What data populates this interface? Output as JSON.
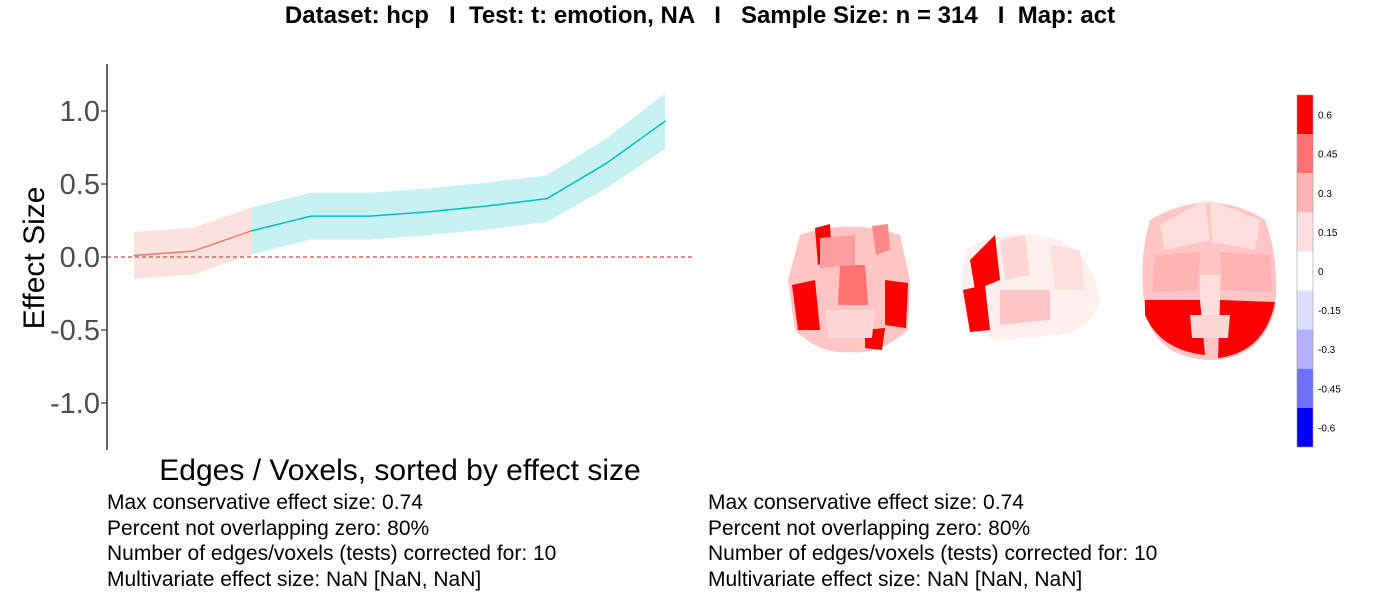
{
  "title": "Dataset: hcp   I  Test: t: emotion, NA   I   Sample Size: n = 314   I  Map: act",
  "chart_data": {
    "type": "line",
    "xlabel": "Edges / Voxels, sorted by effect size",
    "ylabel": "Effect Size",
    "ylim": [
      -1.3,
      1.3
    ],
    "yticks": [
      1.0,
      0.5,
      0.0,
      -0.5,
      -1.0
    ],
    "ytick_labels": [
      "1.0",
      "0.5",
      "0.0",
      "-0.5",
      "-1.0"
    ],
    "xlim": [
      0.5,
      10.5
    ],
    "reference_line": 0,
    "colors": {
      "overlapping_zero": "#f8766d",
      "not_overlapping_zero": "#00bfc4",
      "reference": "#c0504d"
    },
    "series": [
      {
        "x": [
          1,
          2,
          3
        ],
        "values": [
          0.01,
          0.04,
          0.18
        ],
        "lower": [
          -0.15,
          -0.12,
          0.02
        ],
        "upper": [
          0.17,
          0.2,
          0.34
        ]
      },
      {
        "x": [
          3,
          4,
          5,
          6,
          7,
          8,
          9,
          10
        ],
        "values": [
          0.18,
          0.28,
          0.28,
          0.31,
          0.35,
          0.4,
          0.64,
          0.93
        ],
        "lower": [
          0.02,
          0.12,
          0.12,
          0.15,
          0.19,
          0.24,
          0.47,
          0.74
        ],
        "upper": [
          0.34,
          0.44,
          0.44,
          0.47,
          0.51,
          0.56,
          0.81,
          1.12
        ]
      }
    ]
  },
  "stats_left": [
    "Max conservative effect size: 0.74",
    "Percent not overlapping zero: 80%",
    "Number of edges/voxels (tests) corrected for: 10",
    "Multivariate effect size: NaN [NaN, NaN]"
  ],
  "stats_right": [
    "Max conservative effect size: 0.74",
    "Percent not overlapping zero: 80%",
    "Number of edges/voxels (tests) corrected for: 10",
    "Multivariate effect size: NaN [NaN, NaN]"
  ],
  "colorbar": {
    "tick_labels": [
      "0.6",
      "0.45",
      "0.3",
      "0.15",
      "0",
      "-0.15",
      "-0.3",
      "-0.45",
      "-0.6"
    ],
    "colors": [
      "#ff0000",
      "#ff7070",
      "#ffb2b2",
      "#ffdede",
      "#ffffff",
      "#dedeff",
      "#b2b2ff",
      "#7070ff",
      "#0000ff"
    ]
  }
}
